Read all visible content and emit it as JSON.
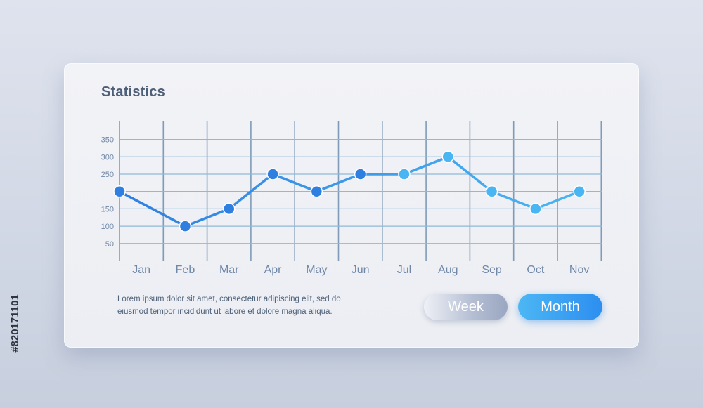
{
  "title": "Statistics",
  "description": "Lorem ipsum dolor sit amet, consectetur adipiscing elit, sed do eiusmod tempor incididunt ut labore et dolore magna aliqua.",
  "buttons": {
    "week": "Week",
    "month": "Month"
  },
  "watermark": "#820171101",
  "colors": {
    "line_start": "#2f7fe0",
    "line_end": "#49b5f2",
    "grid": "#8fb9d8",
    "title": "#4e5f78",
    "tick": "#6f88a8"
  },
  "chart_data": {
    "type": "line",
    "title": "Statistics",
    "categories": [
      "Jan",
      "Feb",
      "Mar",
      "Apr",
      "May",
      "Jun",
      "Jul",
      "Aug",
      "Sep",
      "Oct",
      "Nov"
    ],
    "x_positions": [
      1,
      2.5,
      3.5,
      4.5,
      5.5,
      6.5,
      7.5,
      8.5,
      9.5,
      10.5,
      11.5
    ],
    "x_start": 1,
    "values": [
      200,
      100,
      150,
      250,
      200,
      250,
      250,
      300,
      200,
      150,
      200
    ],
    "yticks": [
      50,
      100,
      150,
      250,
      300,
      350
    ],
    "ylim": [
      0,
      390
    ],
    "grid": true,
    "legend": "none"
  }
}
